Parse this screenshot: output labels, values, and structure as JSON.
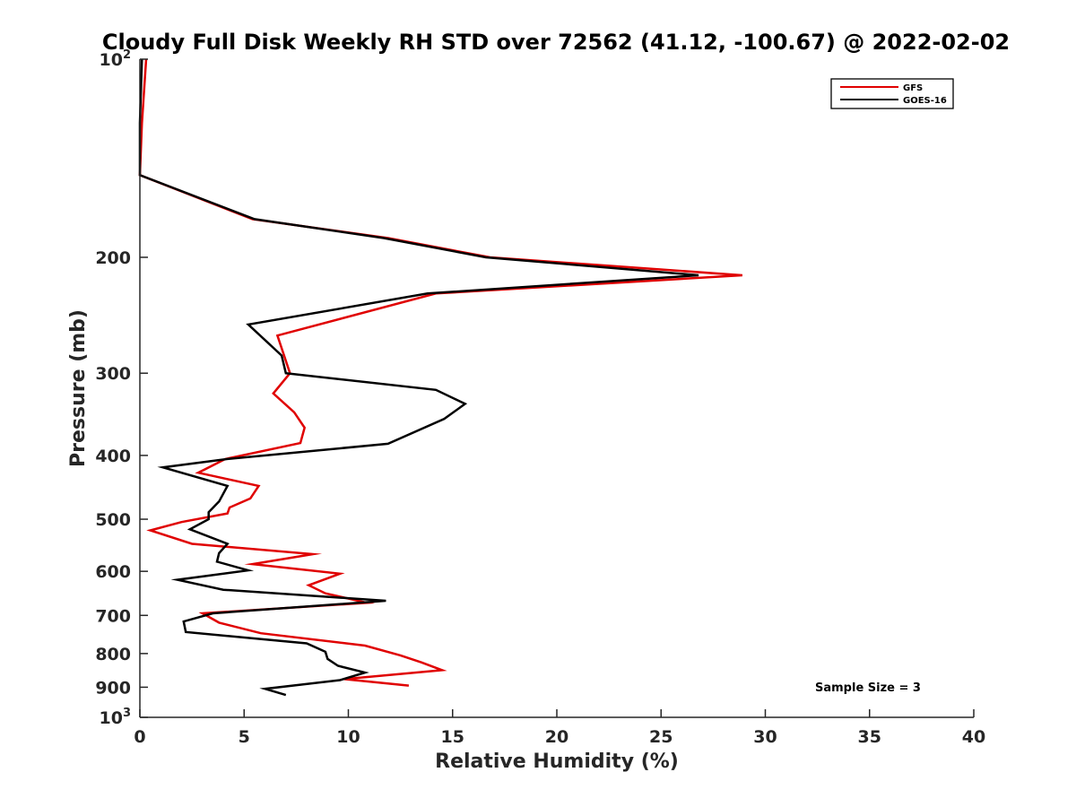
{
  "chart_data": {
    "type": "line",
    "title": "Cloudy Full Disk Weekly RH STD over 72562 (41.12, -100.67) @ 2022-02-02",
    "xlabel": "Relative Humidity (%)",
    "ylabel": "Pressure (mb)",
    "xlim": [
      0,
      40
    ],
    "ylim": [
      100,
      1000
    ],
    "y_scale": "log",
    "y_reversed": true,
    "grid": false,
    "legend_position": "top-right",
    "x_ticks": [
      "0",
      "5",
      "10",
      "15",
      "20",
      "25",
      "30",
      "35",
      "40"
    ],
    "y_ticks": [
      {
        "value": 100,
        "base": "10",
        "exp": "2"
      },
      {
        "value": 200,
        "label": "200"
      },
      {
        "value": 300,
        "label": "300"
      },
      {
        "value": 400,
        "label": "400"
      },
      {
        "value": 500,
        "label": "500"
      },
      {
        "value": 600,
        "label": "600"
      },
      {
        "value": 700,
        "label": "700"
      },
      {
        "value": 800,
        "label": "800"
      },
      {
        "value": 900,
        "label": "900"
      },
      {
        "value": 1000,
        "base": "10",
        "exp": "3"
      }
    ],
    "series": [
      {
        "name": "GFS",
        "color": "#e00000",
        "points": [
          [
            0.3,
            100
          ],
          [
            0.1,
            125
          ],
          [
            0.0,
            150
          ],
          [
            5.4,
            175
          ],
          [
            11.9,
            187
          ],
          [
            16.8,
            200
          ],
          [
            28.9,
            213
          ],
          [
            14.2,
            227
          ],
          [
            6.6,
            263
          ],
          [
            7.2,
            300
          ],
          [
            6.4,
            322
          ],
          [
            7.4,
            344
          ],
          [
            7.9,
            363
          ],
          [
            7.7,
            383
          ],
          [
            4.1,
            405
          ],
          [
            2.8,
            425
          ],
          [
            5.7,
            445
          ],
          [
            5.3,
            465
          ],
          [
            4.3,
            480
          ],
          [
            4.2,
            490
          ],
          [
            2.0,
            505
          ],
          [
            0.5,
            520
          ],
          [
            2.5,
            545
          ],
          [
            8.3,
            565
          ],
          [
            5.4,
            585
          ],
          [
            9.6,
            605
          ],
          [
            8.1,
            630
          ],
          [
            8.9,
            648
          ],
          [
            10.9,
            670
          ],
          [
            3.0,
            695
          ],
          [
            3.8,
            718
          ],
          [
            5.8,
            745
          ],
          [
            10.8,
            778
          ],
          [
            12.5,
            805
          ],
          [
            13.5,
            825
          ],
          [
            14.5,
            848
          ],
          [
            9.8,
            875
          ],
          [
            12.9,
            895
          ]
        ]
      },
      {
        "name": "GOES-16",
        "color": "#000000",
        "points": [
          [
            0.1,
            100
          ],
          [
            0.0,
            125
          ],
          [
            0.0,
            150
          ],
          [
            5.5,
            175
          ],
          [
            11.7,
            187
          ],
          [
            16.6,
            200
          ],
          [
            26.8,
            213
          ],
          [
            13.8,
            227
          ],
          [
            5.2,
            253
          ],
          [
            6.8,
            282
          ],
          [
            7.0,
            300
          ],
          [
            14.2,
            318
          ],
          [
            15.6,
            334
          ],
          [
            14.6,
            352
          ],
          [
            11.9,
            384
          ],
          [
            4.2,
            405
          ],
          [
            1.1,
            417
          ],
          [
            4.2,
            445
          ],
          [
            3.8,
            470
          ],
          [
            3.3,
            488
          ],
          [
            3.3,
            500
          ],
          [
            2.4,
            518
          ],
          [
            4.2,
            545
          ],
          [
            3.8,
            563
          ],
          [
            3.7,
            580
          ],
          [
            5.2,
            598
          ],
          [
            1.8,
            618
          ],
          [
            4.0,
            640
          ],
          [
            11.8,
            665
          ],
          [
            3.5,
            695
          ],
          [
            2.1,
            715
          ],
          [
            2.2,
            742
          ],
          [
            8.0,
            772
          ],
          [
            8.9,
            795
          ],
          [
            9.0,
            815
          ],
          [
            9.5,
            835
          ],
          [
            10.8,
            855
          ],
          [
            9.6,
            878
          ],
          [
            6.0,
            905
          ],
          [
            7.0,
            925
          ]
        ]
      }
    ],
    "annotations": [
      "Sample Size = 3"
    ]
  }
}
